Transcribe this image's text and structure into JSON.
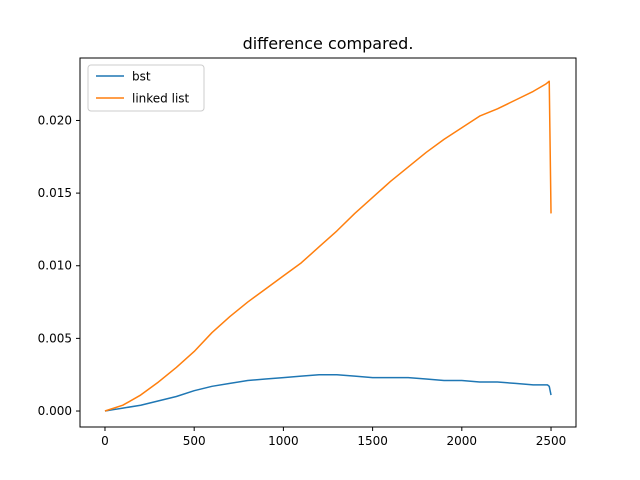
{
  "chart_data": {
    "type": "line",
    "title": "difference compared.",
    "xlabel": "",
    "ylabel": "",
    "xlim": [
      -140,
      2640
    ],
    "ylim": [
      -0.0011,
      0.0243
    ],
    "x_ticks": [
      0,
      500,
      1000,
      1500,
      2000,
      2500
    ],
    "x_tick_labels": [
      "0",
      "500",
      "1000",
      "1500",
      "2000",
      "2500"
    ],
    "y_ticks": [
      0.0,
      0.005,
      0.01,
      0.015,
      0.02
    ],
    "y_tick_labels": [
      "0.000",
      "0.005",
      "0.010",
      "0.015",
      "0.020"
    ],
    "grid": false,
    "legend": {
      "position": "upper-left",
      "entries": [
        "bst",
        "linked list"
      ]
    },
    "series": [
      {
        "name": "bst",
        "color": "#1f77b4",
        "x": [
          0,
          50,
          100,
          200,
          300,
          400,
          500,
          600,
          700,
          800,
          900,
          1000,
          1100,
          1200,
          1300,
          1400,
          1500,
          1600,
          1700,
          1800,
          1900,
          2000,
          2100,
          2200,
          2300,
          2400,
          2480,
          2490,
          2500
        ],
        "y": [
          0.0,
          0.0001,
          0.0002,
          0.0004,
          0.0007,
          0.001,
          0.0014,
          0.0017,
          0.0019,
          0.0021,
          0.0022,
          0.0023,
          0.0024,
          0.0025,
          0.0025,
          0.0024,
          0.0023,
          0.0023,
          0.0023,
          0.0022,
          0.0021,
          0.0021,
          0.002,
          0.002,
          0.0019,
          0.0018,
          0.0018,
          0.0017,
          0.0011
        ]
      },
      {
        "name": "linked list",
        "color": "#ff7f0e",
        "x": [
          0,
          50,
          100,
          200,
          300,
          400,
          500,
          600,
          700,
          800,
          900,
          1000,
          1100,
          1200,
          1300,
          1400,
          1500,
          1600,
          1700,
          1800,
          1900,
          2000,
          2100,
          2200,
          2300,
          2400,
          2470,
          2490,
          2500
        ],
        "y": [
          0.0,
          0.0002,
          0.0004,
          0.0011,
          0.002,
          0.003,
          0.0041,
          0.0054,
          0.0065,
          0.0075,
          0.0084,
          0.0093,
          0.0102,
          0.0113,
          0.0124,
          0.0136,
          0.0147,
          0.0158,
          0.0168,
          0.0178,
          0.0187,
          0.0195,
          0.0203,
          0.0208,
          0.0214,
          0.022,
          0.0225,
          0.0227,
          0.0136
        ]
      }
    ]
  }
}
